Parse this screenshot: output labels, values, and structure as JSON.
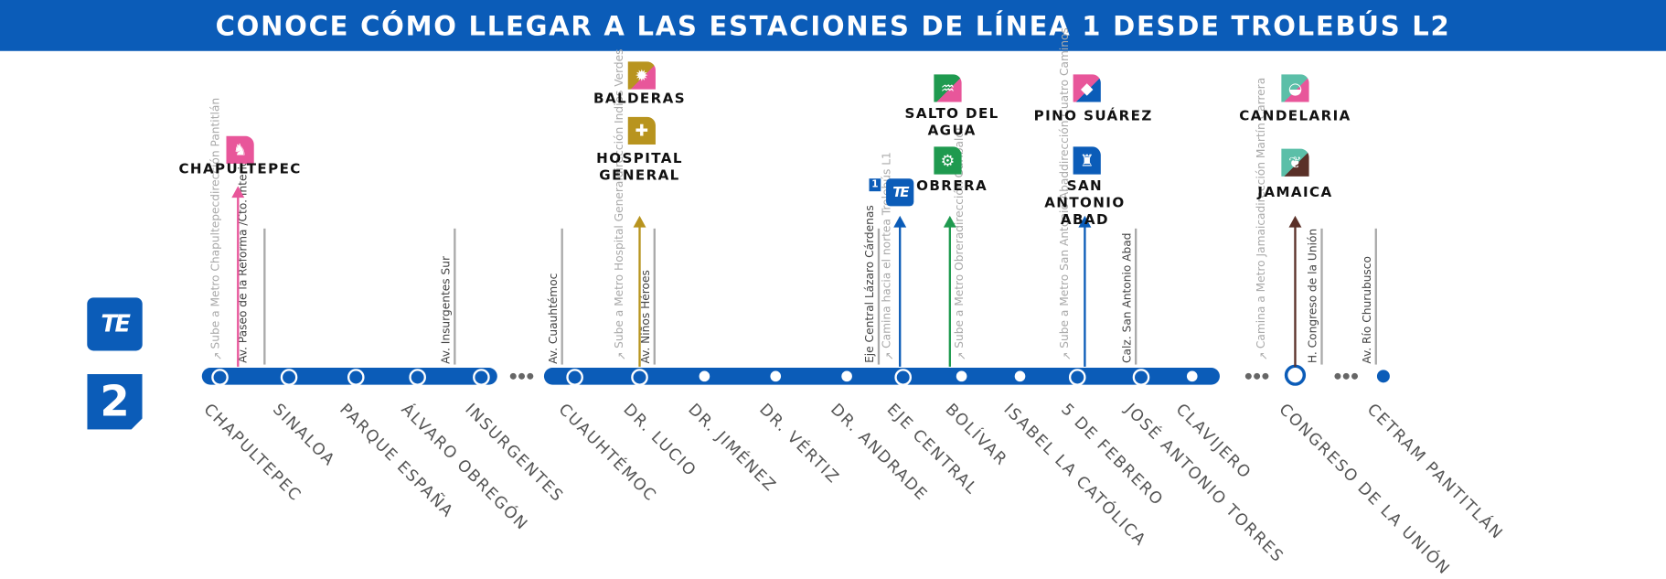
{
  "title": "CONOCE CÓMO LLEGAR A LAS ESTACIONES DE LÍNEA 1 DESDE TROLEBÚS L2",
  "line_badge": {
    "logo": "TE",
    "number": "2"
  },
  "colors": {
    "line": "#0b5cb8",
    "chapultepec": "#e8569a",
    "hospital_general": "#b8941f",
    "obrera": "#1f9a4f",
    "san_antonio_abad": "#0b5cb8",
    "jamaica": "#5a3028",
    "eje_central": "#0b5cb8"
  },
  "stations": [
    {
      "name": "CHAPULTEPEC",
      "marker": "open"
    },
    {
      "name": "SINALOA",
      "marker": "open"
    },
    {
      "name": "PARQUE ESPAÑA",
      "marker": "open"
    },
    {
      "name": "ÁLVARO OBREGÓN",
      "marker": "open"
    },
    {
      "name": "INSURGENTES",
      "marker": "open"
    },
    {
      "name": "CUAUHTÉMOC",
      "marker": "open"
    },
    {
      "name": "DR. LUCIO",
      "marker": "open"
    },
    {
      "name": "DR. JIMÉNEZ",
      "marker": "filled"
    },
    {
      "name": "DR. VÉRTIZ",
      "marker": "filled"
    },
    {
      "name": "DR. ANDRADE",
      "marker": "filled"
    },
    {
      "name": "EJE CENTRAL",
      "marker": "open"
    },
    {
      "name": "BOLÍVAR",
      "marker": "filled"
    },
    {
      "name": "ISABEL LA CATÓLICA",
      "marker": "filled"
    },
    {
      "name": "5 DE FEBRERO",
      "marker": "open"
    },
    {
      "name": "JOSÉ ANTONIO TORRES",
      "marker": "open"
    },
    {
      "name": "CLAVIJERO",
      "marker": "filled"
    },
    {
      "name": "CONGRESO DE LA UNIÓN",
      "marker": "terminal-ring"
    },
    {
      "name": "CETRAM PANTITLÁN",
      "marker": "terminal-dot"
    }
  ],
  "streets": [
    {
      "lines": [
        "Av. Paseo de la Reforma /",
        "Cto. Interior"
      ]
    },
    {
      "lines": [
        "Av. Insurgentes Sur"
      ]
    },
    {
      "lines": [
        "Av. Cuauhtémoc"
      ]
    },
    {
      "lines": [
        "Av. Niños Héroes"
      ]
    },
    {
      "lines": [
        "Eje Central Lázaro Cárdenas"
      ]
    },
    {
      "lines": [
        "Calz. San Antonio Abad"
      ]
    },
    {
      "lines": [
        "H. Congreso de la Unión"
      ]
    },
    {
      "lines": [
        "Av. Río Churubusco"
      ]
    }
  ],
  "instructions": [
    {
      "lines": [
        "Sube a Metro Chapultepec",
        "dirección Pantitlán"
      ]
    },
    {
      "lines": [
        "Sube a Metro Hospital General",
        "dirección Indios Verdes"
      ]
    },
    {
      "lines": [
        "Camina  hacia el norte",
        "a Trolebús L1"
      ]
    },
    {
      "lines": [
        "Sube a Metro Obrera",
        "dirección  Garibaldi"
      ]
    },
    {
      "lines": [
        "Sube a Metro San Antonio Abad",
        "dirección Cuatro Caminos"
      ]
    },
    {
      "lines": [
        "Camina  a Metro Jamaica",
        "dirección Martín Carrera"
      ]
    }
  ],
  "connections": [
    {
      "color": "#e8569a",
      "destinations": [
        {
          "name": "CHAPULTEPEC",
          "icon": "grasshopper-icon",
          "icon_colors": [
            "#e8569a",
            "#e8569a"
          ]
        }
      ]
    },
    {
      "color": "#b8941f",
      "destinations": [
        {
          "name": "BALDERAS",
          "icon": "cannon-icon",
          "icon_colors": [
            "#b8941f",
            "#e8569a"
          ]
        },
        {
          "name": "HOSPITAL GENERAL",
          "icon": "hospital-cross-icon",
          "icon_colors": [
            "#b8941f",
            "#b8941f"
          ]
        }
      ]
    },
    {
      "color": "#0b5cb8",
      "destinations": [
        {
          "name": "",
          "icon": "trolebus-logo-icon",
          "badge": "1",
          "icon_colors": [
            "#0b5cb8",
            "#0b5cb8"
          ]
        }
      ]
    },
    {
      "color": "#1f9a4f",
      "destinations": [
        {
          "name": "SALTO DEL AGUA",
          "icon": "fountain-icon",
          "icon_colors": [
            "#1f9a4f",
            "#e8569a"
          ]
        },
        {
          "name": "OBRERA",
          "icon": "gear-icon",
          "icon_colors": [
            "#1f9a4f",
            "#1f9a4f"
          ]
        }
      ]
    },
    {
      "color": "#0b5cb8",
      "destinations": [
        {
          "name": "PINO SUÁREZ",
          "icon": "pyramid-icon",
          "icon_colors": [
            "#e8569a",
            "#0b5cb8"
          ]
        },
        {
          "name": "SAN ANTONIO ABAD",
          "icon": "saint-statue-icon",
          "icon_colors": [
            "#0b5cb8",
            "#0b5cb8"
          ]
        }
      ]
    },
    {
      "color": "#5a3028",
      "destinations": [
        {
          "name": "CANDELARIA",
          "icon": "duck-icon",
          "icon_colors": [
            "#5bbfa8",
            "#e8569a"
          ]
        },
        {
          "name": "JAMAICA",
          "icon": "corn-icon",
          "icon_colors": [
            "#5bbfa8",
            "#5a3028"
          ]
        }
      ]
    }
  ]
}
